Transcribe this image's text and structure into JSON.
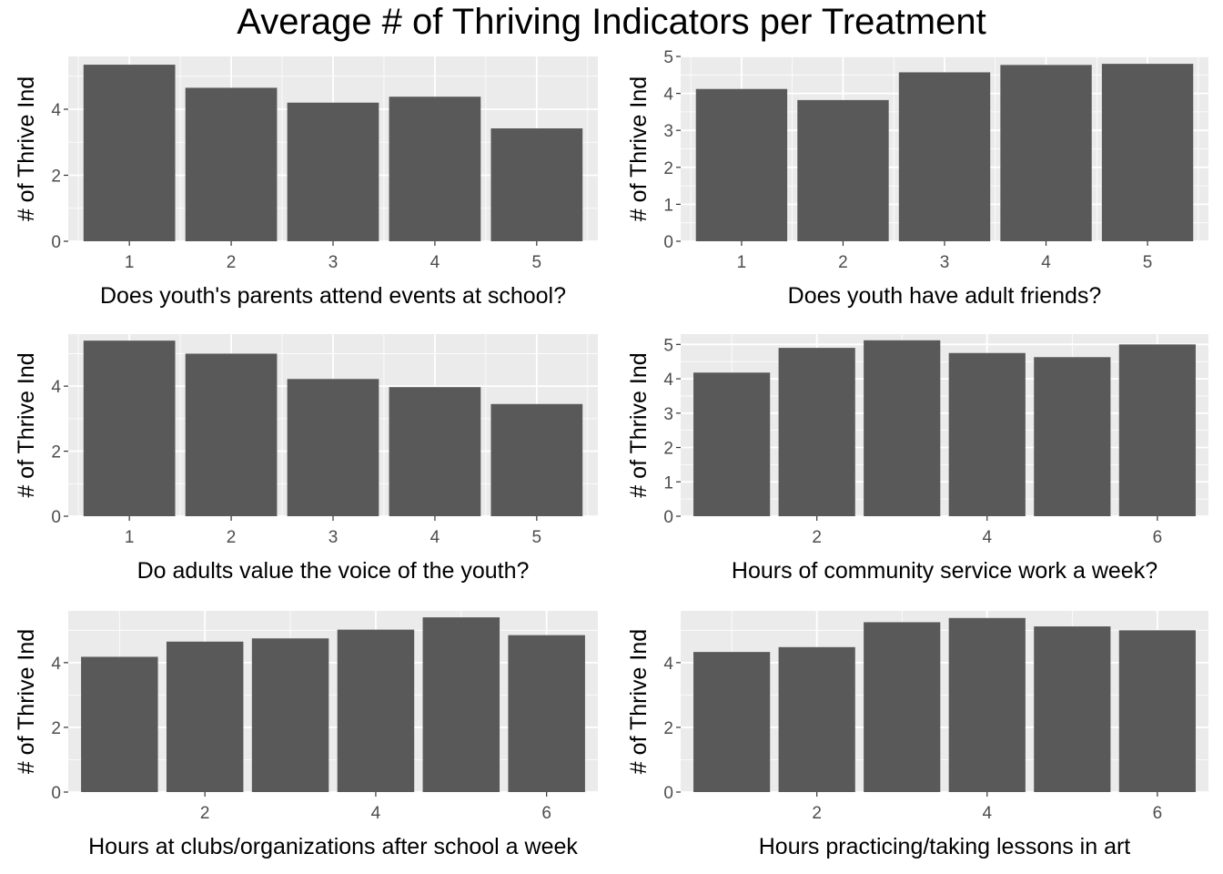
{
  "title": "Average # of Thriving Indicators per Treatment",
  "colors": {
    "panel_bg": "#ebebeb",
    "grid_major": "#ffffff",
    "bar": "#595959",
    "tick_text": "#4d4d4d",
    "tick_mark": "#333333"
  },
  "chart_data": [
    {
      "type": "bar",
      "x": [
        1,
        2,
        3,
        4,
        5
      ],
      "values": [
        5.35,
        4.65,
        4.2,
        4.38,
        3.42
      ],
      "xticks": [
        "1",
        "2",
        "3",
        "4",
        "5"
      ],
      "xlim": [
        0.4,
        5.6
      ],
      "yticks": [
        "0",
        "2",
        "4"
      ],
      "ylim": [
        0,
        5.6
      ],
      "xlabel": "Does youth's parents attend events at school?",
      "ylabel": "# of Thrive Ind",
      "grid": true
    },
    {
      "type": "bar",
      "x": [
        1,
        2,
        3,
        4,
        5
      ],
      "values": [
        4.12,
        3.82,
        4.57,
        4.77,
        4.8
      ],
      "xticks": [
        "1",
        "2",
        "3",
        "4",
        "5"
      ],
      "xlim": [
        0.4,
        5.6
      ],
      "yticks": [
        "0",
        "1",
        "2",
        "3",
        "4",
        "5"
      ],
      "ylim": [
        0,
        5.0
      ],
      "xlabel": "Does youth have adult friends?",
      "ylabel": "# of Thrive Ind",
      "grid": true
    },
    {
      "type": "bar",
      "x": [
        1,
        2,
        3,
        4,
        5
      ],
      "values": [
        5.4,
        5.0,
        4.22,
        3.97,
        3.45
      ],
      "xticks": [
        "1",
        "2",
        "3",
        "4",
        "5"
      ],
      "xlim": [
        0.4,
        5.6
      ],
      "yticks": [
        "0",
        "2",
        "4"
      ],
      "ylim": [
        0,
        5.6
      ],
      "xlabel": "Do adults value the voice of the youth?",
      "ylabel": "# of Thrive Ind",
      "grid": true
    },
    {
      "type": "bar",
      "x": [
        1,
        2,
        3,
        4,
        5,
        6
      ],
      "values": [
        4.18,
        4.9,
        5.12,
        4.75,
        4.63,
        5.0
      ],
      "xticks": [
        "2",
        "4",
        "6"
      ],
      "xlim": [
        0.4,
        6.6
      ],
      "yticks": [
        "0",
        "1",
        "2",
        "3",
        "4",
        "5"
      ],
      "ylim": [
        0,
        5.3
      ],
      "xlabel": "Hours of community service work a week?",
      "ylabel": "# of Thrive Ind",
      "grid": true
    },
    {
      "type": "bar",
      "x": [
        1,
        2,
        3,
        4,
        5,
        6
      ],
      "values": [
        4.18,
        4.65,
        4.75,
        5.02,
        5.4,
        4.85
      ],
      "xticks": [
        "2",
        "4",
        "6"
      ],
      "xlim": [
        0.4,
        6.6
      ],
      "yticks": [
        "0",
        "2",
        "4"
      ],
      "ylim": [
        0,
        5.6
      ],
      "xlabel": "Hours at clubs/organizations after school a week",
      "ylabel": "# of Thrive Ind",
      "grid": true
    },
    {
      "type": "bar",
      "x": [
        1,
        2,
        3,
        4,
        5,
        6
      ],
      "values": [
        4.33,
        4.48,
        5.25,
        5.38,
        5.12,
        5.0
      ],
      "xticks": [
        "2",
        "4",
        "6"
      ],
      "xlim": [
        0.4,
        6.6
      ],
      "yticks": [
        "0",
        "2",
        "4"
      ],
      "ylim": [
        0,
        5.6
      ],
      "xlabel": "Hours practicing/taking lessons in art",
      "ylabel": "# of Thrive Ind",
      "grid": true
    }
  ]
}
